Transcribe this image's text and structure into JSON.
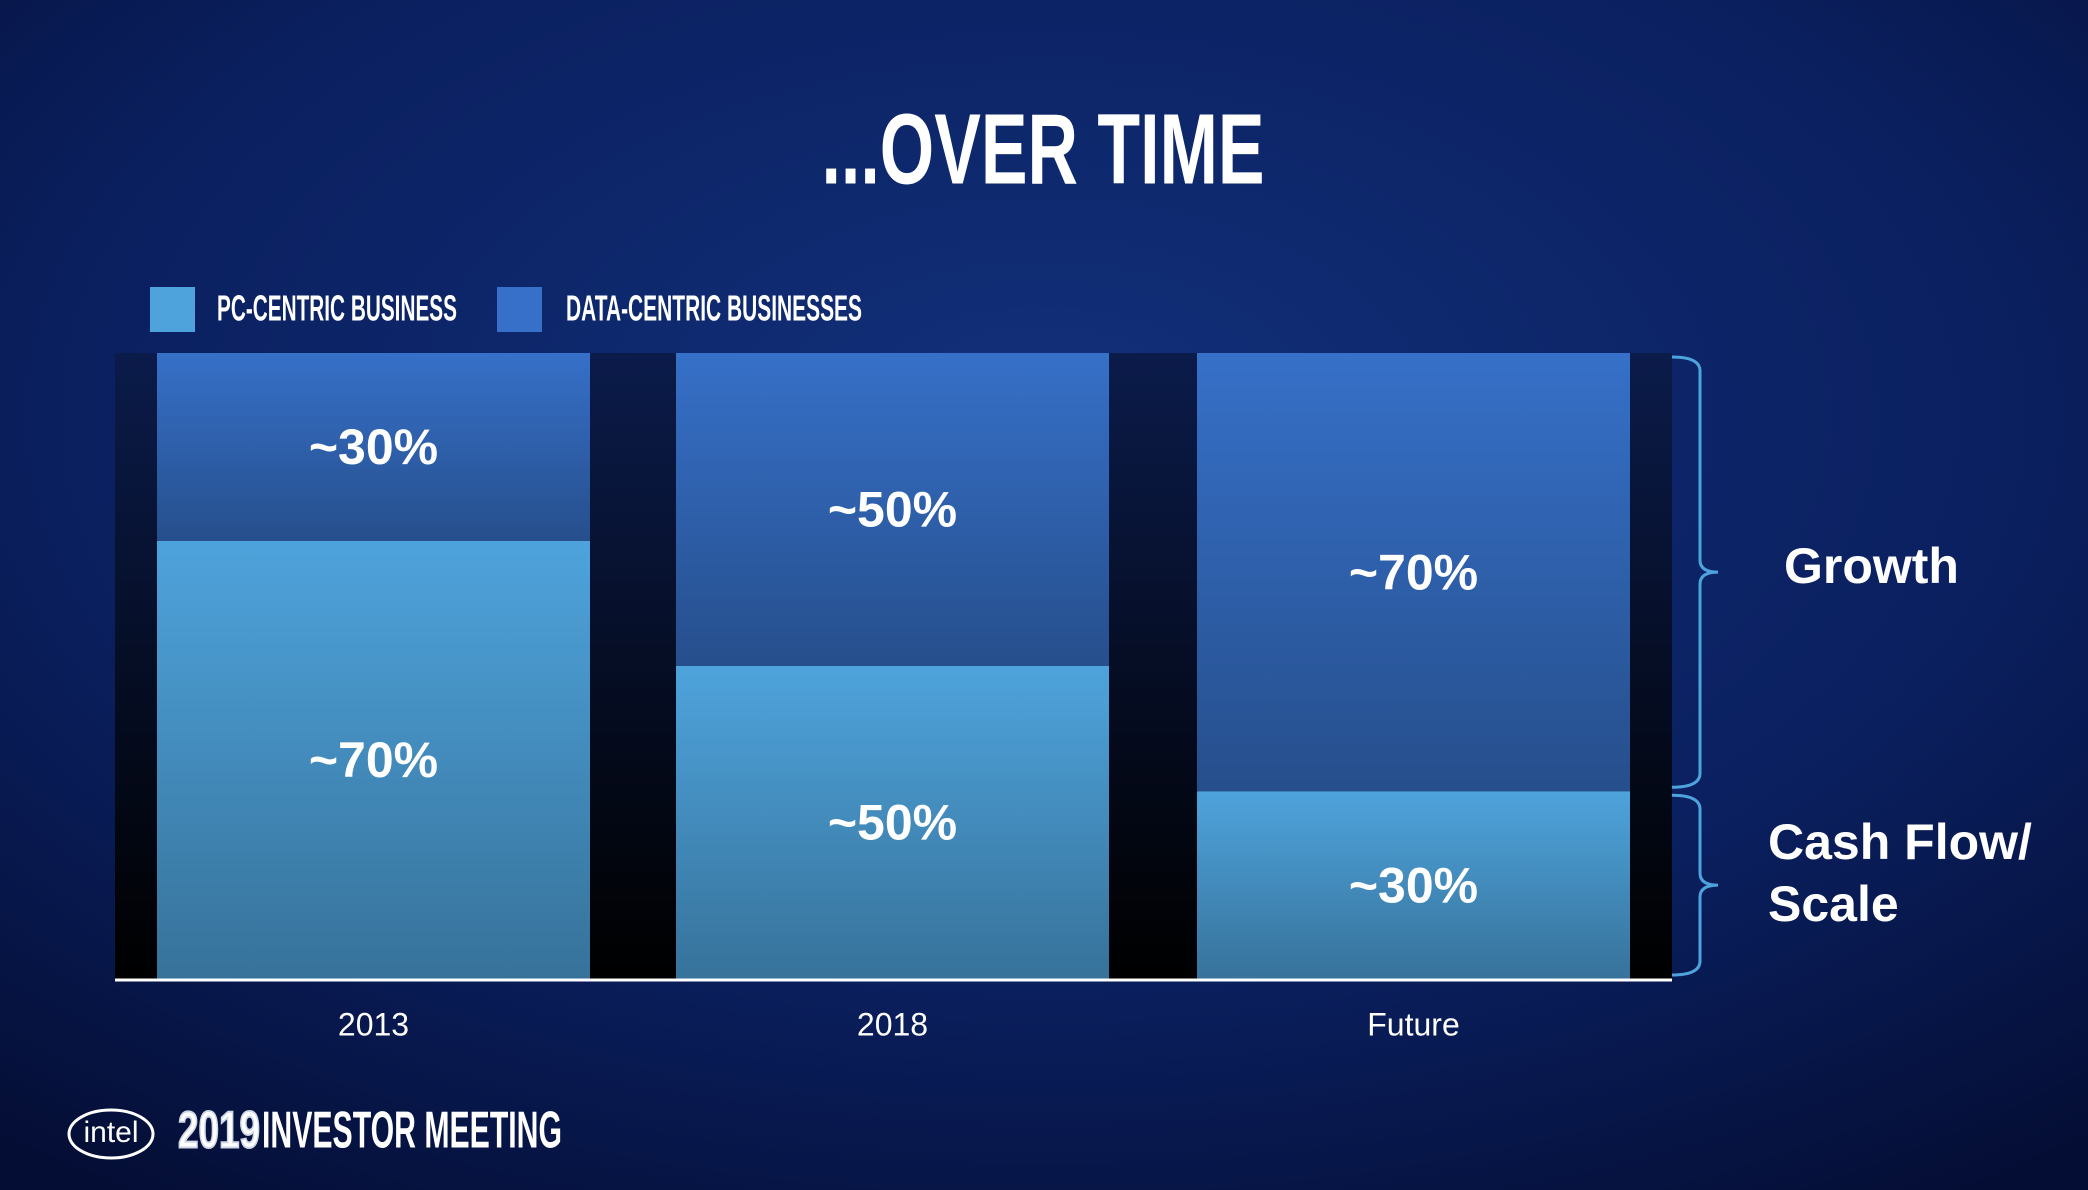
{
  "chart_data": {
    "type": "stacked-bar",
    "title": "...OVER TIME",
    "categories": [
      "2013",
      "2018",
      "Future"
    ],
    "series": [
      {
        "name": "PC-CENTRIC BUSINESS",
        "color": "#4ea3dc",
        "values": [
          70,
          50,
          30
        ],
        "value_labels": [
          "~70%",
          "~50%",
          "~30%"
        ]
      },
      {
        "name": "DATA-CENTRIC BUSINESSES",
        "color": "#3670c8",
        "values": [
          30,
          50,
          70
        ],
        "value_labels": [
          "~30%",
          "~50%",
          "~70%"
        ]
      }
    ],
    "legend": "top-left",
    "annotations": {
      "growth": "Growth",
      "cash_flow": [
        "Cash Flow/",
        "Scale"
      ]
    }
  },
  "footer": {
    "logo": "intel",
    "year": "2019",
    "event": "INVESTOR MEETING"
  }
}
